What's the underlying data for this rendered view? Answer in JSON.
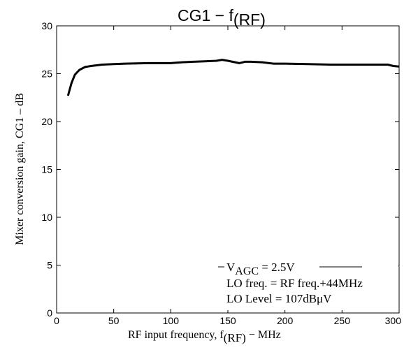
{
  "chart_data": {
    "type": "line",
    "title": {
      "main": "CG1 − f",
      "sub": "(RF)"
    },
    "xlabel": {
      "main": "RF input frequency, f",
      "sub": "(RF)",
      "unit": " − MHz"
    },
    "ylabel": "Mixer conversion gain, CG1 – dB",
    "xlim": [
      0,
      300
    ],
    "ylim": [
      0,
      30
    ],
    "xticks": [
      0,
      50,
      100,
      150,
      200,
      250,
      300
    ],
    "yticks": [
      0,
      5,
      10,
      15,
      20,
      25,
      30
    ],
    "grid": false,
    "series": [
      {
        "color": "#000000",
        "x": [
          10,
          13,
          16,
          20,
          25,
          30,
          40,
          50,
          60,
          80,
          100,
          110,
          120,
          130,
          140,
          145,
          150,
          160,
          165,
          170,
          180,
          190,
          200,
          220,
          240,
          260,
          280,
          290,
          295,
          300
        ],
        "y": [
          22.7,
          24.0,
          24.9,
          25.4,
          25.7,
          25.8,
          25.95,
          26.0,
          26.05,
          26.1,
          26.1,
          26.2,
          26.25,
          26.3,
          26.35,
          26.45,
          26.35,
          26.1,
          26.25,
          26.25,
          26.2,
          26.05,
          26.05,
          26.0,
          25.95,
          25.95,
          25.95,
          25.95,
          25.8,
          25.75
        ]
      }
    ],
    "annotation": {
      "line1_prefix": "V",
      "line1_sub": "AGC",
      "line1_suffix": " = 2.5V",
      "line2": "LO freq. = RF freq.+44MHz",
      "line3": "LO Level = 107dBμV"
    }
  }
}
